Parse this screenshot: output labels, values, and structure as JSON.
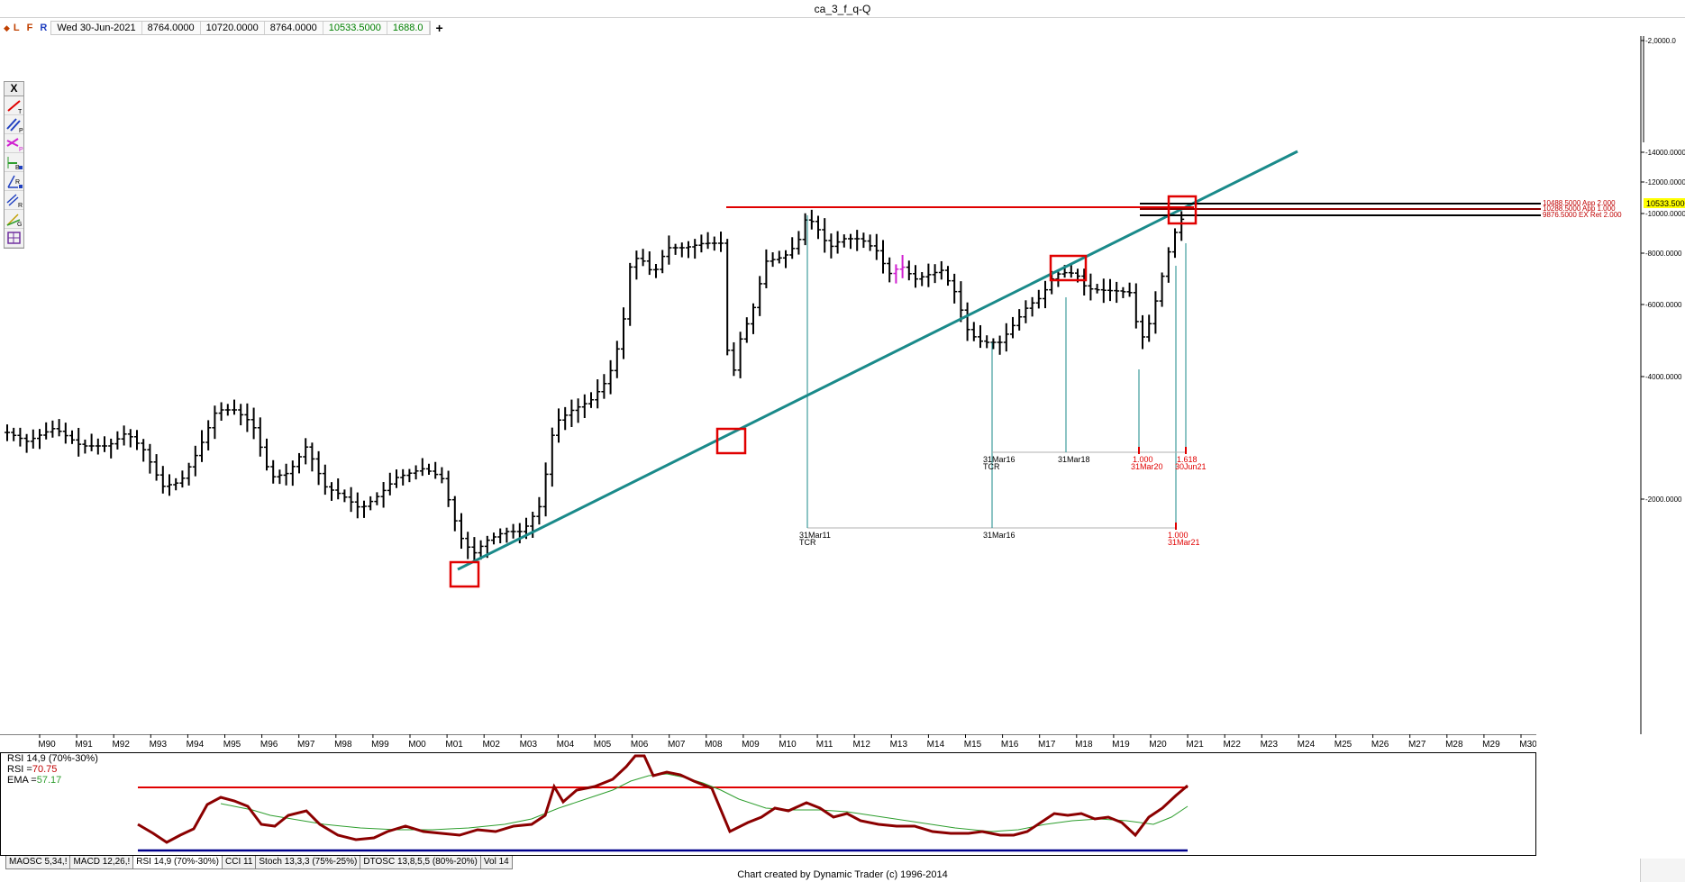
{
  "window": {
    "title": "ca_3_f_q-Q"
  },
  "info_bar": {
    "modes": [
      "L",
      "F",
      "R"
    ],
    "date": "Wed 30-Jun-2021",
    "open": "8764.0000",
    "high": "10720.0000",
    "low": "8764.0000",
    "close": "10533.5000",
    "volume": "1688.0",
    "add_label": "+"
  },
  "toolbar": {
    "close_label": "X",
    "tools": [
      "trendline-tool",
      "parallel-tool",
      "price-projection-tool",
      "bands-tool",
      "retracement-tool",
      "ratio-tool",
      "fan-tool",
      "grid-tool"
    ]
  },
  "colors": {
    "trendline": "#1a8a8a",
    "resistance": "#e00000",
    "price_bars": "#000000",
    "rsi": "#8b0000",
    "ema": "#2e9e2e",
    "rsi_bounds_high": "#e00000",
    "rsi_bounds_low": "#00008b",
    "current_price_bg": "#ffff00",
    "close_value": "#008000"
  },
  "price_axis": {
    "labels": [
      "2,0000.0",
      "14000.0000",
      "12000.0000",
      "10000.0000",
      "8000.0000",
      "6000.0000",
      "4000.0000",
      "2000.0000"
    ],
    "current_price": "10533.5000"
  },
  "levels": [
    {
      "label": "10488.5000 App 2.000",
      "price": 10488.5
    },
    {
      "label": "10288.5000 App 1.000",
      "price": 10288.5
    },
    {
      "label": "9876.5000 EX Ret 2.000",
      "price": 9876.5
    }
  ],
  "time_axis": {
    "labels": [
      "M90",
      "M91",
      "M92",
      "M93",
      "M94",
      "M95",
      "M96",
      "M97",
      "M98",
      "M99",
      "M00",
      "M01",
      "M02",
      "M03",
      "M04",
      "M05",
      "M06",
      "M07",
      "M08",
      "M09",
      "M10",
      "M11",
      "M12",
      "M13",
      "M14",
      "M15",
      "M16",
      "M17",
      "M18",
      "M19",
      "M20",
      "M21",
      "M22",
      "M23",
      "M24",
      "M25",
      "M26",
      "M27",
      "M28",
      "M29",
      "M30"
    ]
  },
  "annotations": {
    "cycle1": {
      "start_date": "31Mar11",
      "start_tag": "TCR",
      "mid_date": "31Mar16",
      "end_ratio": "1.000",
      "end_date": "31Mar21"
    },
    "cycle2": {
      "start_date": "31Mar16",
      "start_tag": "TCR",
      "mid_date": "31Mar18",
      "ratio1": "1.000",
      "date1": "31Mar20",
      "ratio2": "1.618",
      "date2": "30Jun21"
    }
  },
  "rsi": {
    "title": "RSI 14,9 (70%-30%)",
    "rsi_label": "RSI =",
    "rsi_value": "70.75",
    "ema_label": "EMA =",
    "ema_value": "57.17"
  },
  "tabs": [
    "MAOSC 5,34,!",
    "MACD 12,26,!",
    "RSI 14,9 (70%-30%)",
    "CCI 11",
    "Stoch 13,3,3 (75%-25%)",
    "DTOSC 13,8,5,5 (80%-20%)",
    "Vol 14"
  ],
  "active_tab": 2,
  "credit": "Chart created by Dynamic Trader  (c)  1996-2014"
}
